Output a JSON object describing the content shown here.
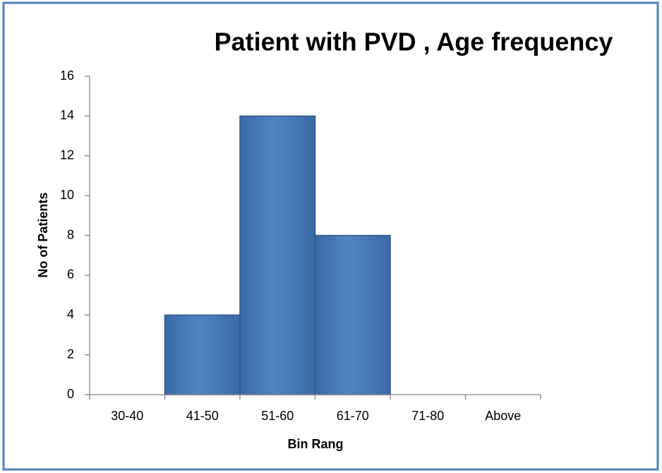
{
  "chart_data": {
    "type": "bar",
    "title": "Patient with PVD , Age frequency",
    "x_label": "Bin Rang",
    "y_label": "No of Patients",
    "categories": [
      "30-40",
      "41-50",
      "51-60",
      "61-70",
      "71-80",
      "Above"
    ],
    "values": [
      0,
      4,
      14,
      8,
      0,
      0
    ],
    "color": "#4f81bd",
    "ylim": [
      0,
      16
    ],
    "yticks": [
      0,
      2,
      4,
      6,
      8,
      10,
      12,
      14,
      16
    ],
    "grid": false
  }
}
